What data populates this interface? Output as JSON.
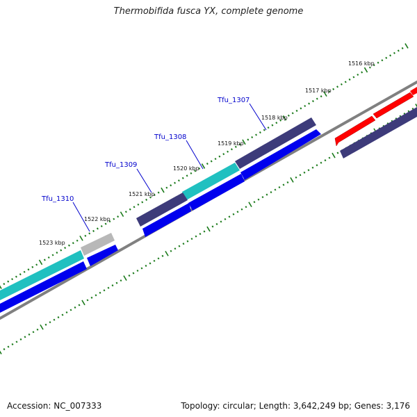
{
  "map": {
    "title": "Thermobifida fusca YX, complete genome",
    "accession": "Accession: NC_007333",
    "summary": "Topology: circular; Length: 3,642,249 bp; Genes: 3,176",
    "colors": {
      "background": "#ffffff",
      "backbone": "#808080",
      "ticks": "#1a7a1a",
      "label_link": "#0000cc",
      "gene_red": "#ff0000",
      "gene_navy": "#3d3b7a",
      "gene_cyan": "#20c0c0",
      "gene_blue": "#0000ee",
      "gene_gray": "#b8b8b8"
    },
    "kbp_labels": [
      "1516 kbp",
      "1517 kbp",
      "1518 kbp",
      "1519 kbp",
      "1520 kbp",
      "1521 kbp",
      "1522 kbp",
      "1523 kbp"
    ],
    "gene_labels": [
      "Tfu_1307",
      "Tfu_1308",
      "Tfu_1309",
      "Tfu_1310"
    ]
  }
}
